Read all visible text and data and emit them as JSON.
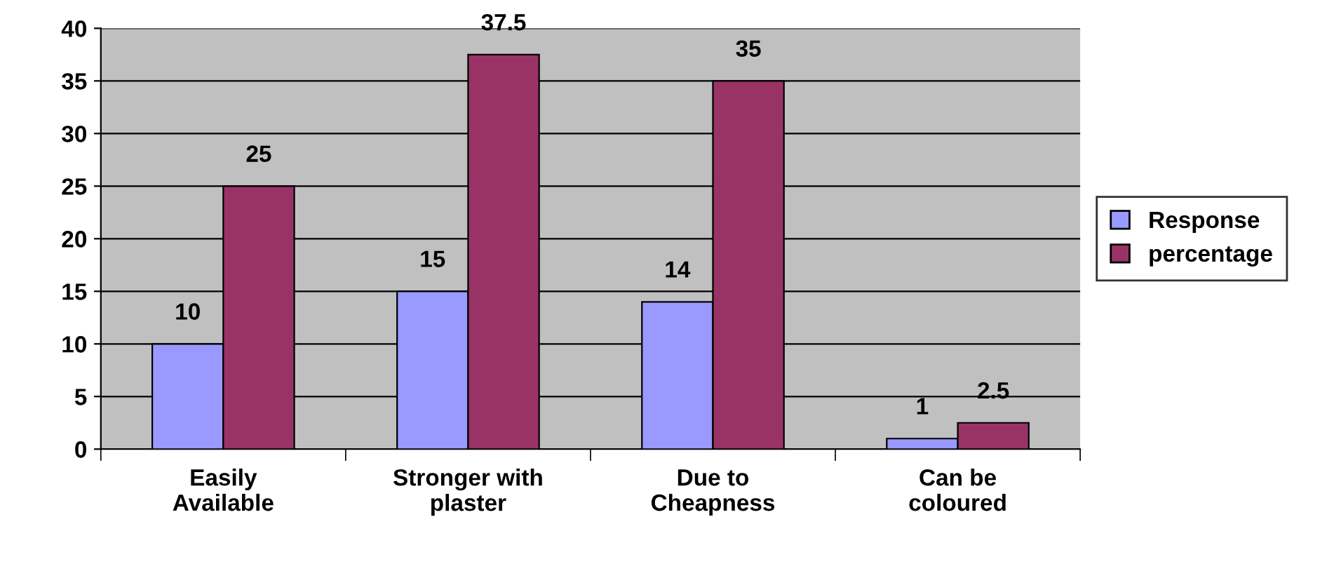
{
  "chart_data": {
    "type": "bar",
    "categories": [
      "Easily\nAvailable",
      "Stronger with\nplaster",
      "Due to\nCheapness",
      "Can be\ncoloured"
    ],
    "series": [
      {
        "name": "Response",
        "color": "#9999ff",
        "values": [
          10,
          15,
          14,
          1
        ]
      },
      {
        "name": "percentage",
        "color": "#993366",
        "values": [
          25,
          37.5,
          35,
          2.5
        ]
      }
    ],
    "ylim": [
      0,
      40
    ],
    "yticks": [
      0,
      5,
      10,
      15,
      20,
      25,
      30,
      35,
      40
    ],
    "grid": "y",
    "legend": "right",
    "data_labels": true
  }
}
